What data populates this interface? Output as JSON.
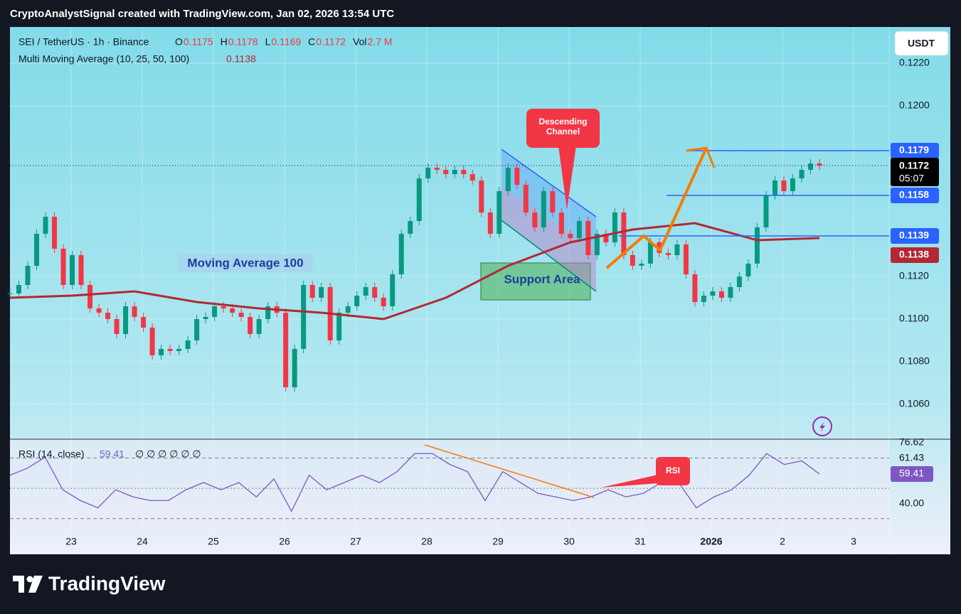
{
  "header": {
    "text": "CryptoAnalystSignal created with TradingView.com, Jan 02, 2026 13:54 UTC"
  },
  "chart_data": {
    "type": "candlestick",
    "symbol": "SEI / TetherUS · 1h · Binance",
    "ohlc": [
      {
        "label": "O",
        "value": 0.1175
      },
      {
        "label": "H",
        "value": 0.1178
      },
      {
        "label": "L",
        "value": 0.1169
      },
      {
        "label": "C",
        "value": 0.1172
      },
      {
        "label": "Vol",
        "value": "2.7 M"
      }
    ],
    "currency": "USDT",
    "x_labels": [
      "23",
      "24",
      "25",
      "26",
      "27",
      "28",
      "29",
      "30",
      "31",
      "2026",
      "2",
      "3"
    ],
    "ylim": [
      0.1044,
      0.1237
    ],
    "yticks": [
      {
        "value": 0.106,
        "label": "0.1060"
      },
      {
        "value": 0.108,
        "label": "0.1080"
      },
      {
        "value": 0.11,
        "label": "0.1100"
      },
      {
        "value": 0.112,
        "label": "0.1120"
      },
      {
        "value": 0.12,
        "label": "0.1200"
      },
      {
        "value": 0.122,
        "label": "0.1220"
      }
    ],
    "series": [
      {
        "name": "SEI / TetherUS",
        "up_color": "#089981",
        "down_color": "#f23645",
        "values": [
          0.1112,
          0.1116,
          0.1125,
          0.114,
          0.1148,
          0.1133,
          0.1116,
          0.113,
          0.1116,
          0.1105,
          0.1103,
          0.11,
          0.1093,
          0.1106,
          0.1101,
          0.1096,
          0.1083,
          0.1086,
          0.1085,
          0.1086,
          0.109,
          0.11,
          0.1101,
          0.1106,
          0.1105,
          0.1103,
          0.1101,
          0.1093,
          0.11,
          0.1106,
          0.1103,
          0.1068,
          0.1086,
          0.1116,
          0.111,
          0.1115,
          0.109,
          0.1103,
          0.1106,
          0.1111,
          0.1115,
          0.111,
          0.1106,
          0.1121,
          0.114,
          0.1146,
          0.1166,
          0.1171,
          0.117,
          0.1168,
          0.117,
          0.1168,
          0.1165,
          0.115,
          0.114,
          0.116,
          0.1171,
          0.1163,
          0.115,
          0.1143,
          0.116,
          0.115,
          0.114,
          0.1138,
          0.1146,
          0.113,
          0.114,
          0.1136,
          0.115,
          0.113,
          0.1125,
          0.1126,
          0.1136,
          0.1131,
          0.113,
          0.1135,
          0.1121,
          0.1108,
          0.1111,
          0.1113,
          0.111,
          0.1115,
          0.112,
          0.1126,
          0.1143,
          0.1158,
          0.1165,
          0.116,
          0.1166,
          0.117,
          0.1173,
          0.1172
        ]
      },
      {
        "name": "Multi Moving Average (10, 25, 50, 100)",
        "color": "#b22833",
        "values": [
          0.111,
          0.1111,
          0.1113,
          0.1108,
          0.1105,
          0.1103,
          0.11,
          0.111,
          0.1125,
          0.1136,
          0.1142,
          0.1145,
          0.1137,
          0.1138
        ]
      }
    ],
    "last_price": {
      "value": 0.1172,
      "countdown": "05:07"
    },
    "levels": [
      {
        "value": 0.1179,
        "color": "#2962ff"
      },
      {
        "value": 0.1158,
        "color": "#2962ff"
      },
      {
        "value": 0.1139,
        "color": "#2962ff"
      }
    ],
    "ma_last": {
      "value": 0.1138,
      "color": "#b22833"
    },
    "annotations": [
      "Moving Average 100",
      "Support Area",
      "Descending Channel",
      "RSI"
    ],
    "rsi": {
      "title": "RSI (14, close)",
      "value": 59.41,
      "placeholders": "∅ ∅ ∅ ∅ ∅ ∅",
      "color": "#7e57c2",
      "ylim": [
        20.5,
        82.4
      ],
      "yticks": [
        {
          "value": 40,
          "label": "40.00"
        },
        61.43,
        76.62
      ],
      "bands": [
        70,
        50,
        30
      ],
      "values": [
        58.6,
        63.3,
        70.5,
        49.0,
        41.9,
        37.1,
        49.0,
        44.3,
        41.9,
        41.9,
        49.0,
        53.8,
        49.0,
        53.8,
        44.3,
        56.2,
        34.8,
        58.6,
        49.0,
        53.8,
        58.6,
        53.8,
        61.0,
        72.9,
        72.9,
        65.7,
        61.0,
        41.9,
        61.0,
        53.8,
        46.7,
        44.3,
        41.9,
        44.3,
        49.0,
        44.3,
        46.7,
        53.8,
        53.8,
        37.1,
        44.3,
        49.0,
        58.6,
        72.9,
        65.7,
        68.1,
        59.41
      ]
    }
  },
  "footer": {
    "brand": "TradingView"
  }
}
